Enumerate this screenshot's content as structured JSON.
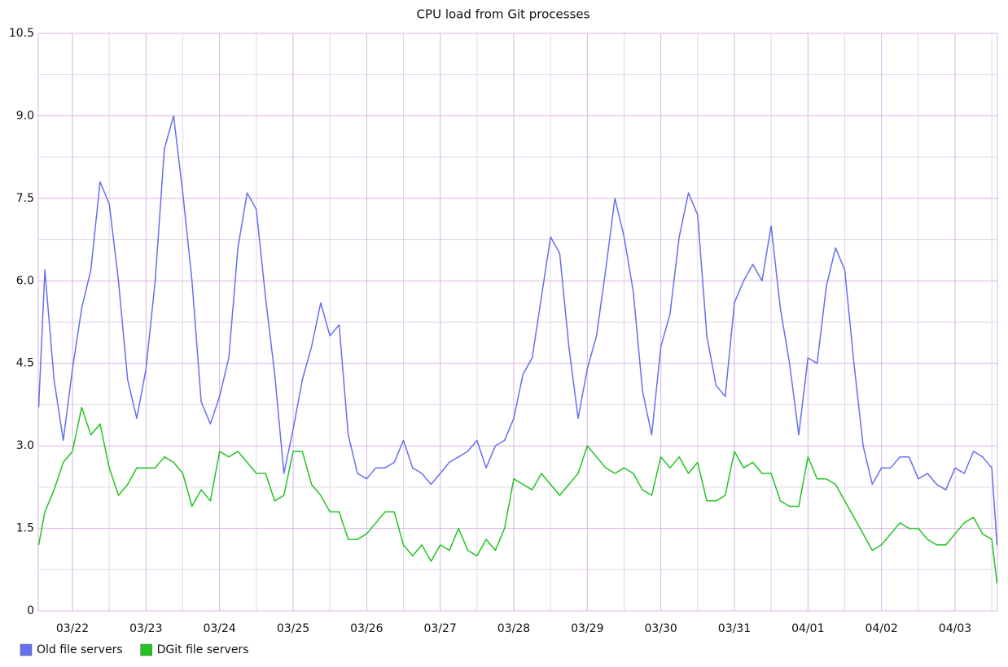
{
  "chart_data": {
    "type": "line",
    "title": "CPU load from Git processes",
    "x": [
      0.54,
      0.625,
      0.75,
      0.875,
      1,
      1.125,
      1.25,
      1.375,
      1.5,
      1.625,
      1.75,
      1.875,
      2,
      2.125,
      2.25,
      2.375,
      2.5,
      2.625,
      2.75,
      2.875,
      3,
      3.125,
      3.25,
      3.375,
      3.5,
      3.625,
      3.75,
      3.875,
      4,
      4.125,
      4.25,
      4.375,
      4.5,
      4.625,
      4.75,
      4.875,
      5,
      5.125,
      5.25,
      5.375,
      5.5,
      5.625,
      5.75,
      5.875,
      6,
      6.125,
      6.25,
      6.375,
      6.5,
      6.625,
      6.75,
      6.875,
      7,
      7.125,
      7.25,
      7.375,
      7.5,
      7.625,
      7.75,
      7.875,
      8,
      8.125,
      8.25,
      8.375,
      8.5,
      8.625,
      8.75,
      8.875,
      9,
      9.125,
      9.25,
      9.375,
      9.5,
      9.625,
      9.75,
      9.875,
      10,
      10.125,
      10.25,
      10.375,
      10.5,
      10.625,
      10.75,
      10.875,
      11,
      11.125,
      11.25,
      11.375,
      11.5,
      11.625,
      11.75,
      11.875,
      12,
      12.125,
      12.25,
      12.375,
      12.5,
      12.625,
      12.75,
      12.875,
      13,
      13.125,
      13.25,
      13.375,
      13.5,
      13.57
    ],
    "series": [
      {
        "name": "Old file servers",
        "color": "#6670ee",
        "values": [
          3.7,
          6.2,
          4.2,
          3.1,
          4.4,
          5.5,
          6.2,
          7.8,
          7.4,
          6.0,
          4.2,
          3.5,
          4.4,
          6.0,
          8.4,
          9.0,
          7.6,
          6.0,
          3.8,
          3.4,
          3.9,
          4.6,
          6.6,
          7.6,
          7.3,
          5.7,
          4.3,
          2.5,
          3.3,
          4.2,
          4.8,
          5.6,
          5.0,
          5.2,
          3.2,
          2.5,
          2.4,
          2.6,
          2.6,
          2.7,
          3.1,
          2.6,
          2.5,
          2.3,
          2.5,
          2.7,
          2.8,
          2.9,
          3.1,
          2.6,
          3.0,
          3.1,
          3.5,
          4.3,
          4.6,
          5.7,
          6.8,
          6.5,
          4.8,
          3.5,
          4.4,
          5.0,
          6.2,
          7.5,
          6.8,
          5.8,
          4.0,
          3.2,
          4.8,
          5.4,
          6.8,
          7.6,
          7.2,
          5.0,
          4.1,
          3.9,
          5.6,
          6.0,
          6.3,
          6.0,
          7.0,
          5.5,
          4.5,
          3.2,
          4.6,
          4.5,
          5.9,
          6.6,
          6.2,
          4.5,
          3.0,
          2.3,
          2.6,
          2.6,
          2.8,
          2.8,
          2.4,
          2.5,
          2.3,
          2.2,
          2.6,
          2.5,
          2.9,
          2.8,
          2.6,
          1.2
        ]
      },
      {
        "name": "DGit file servers",
        "color": "#22c422",
        "values": [
          1.2,
          1.8,
          2.2,
          2.7,
          2.9,
          3.7,
          3.2,
          3.4,
          2.6,
          2.1,
          2.3,
          2.6,
          2.6,
          2.6,
          2.8,
          2.7,
          2.5,
          1.9,
          2.2,
          2.0,
          2.9,
          2.8,
          2.9,
          2.7,
          2.5,
          2.5,
          2.0,
          2.1,
          2.9,
          2.9,
          2.3,
          2.1,
          1.8,
          1.8,
          1.3,
          1.3,
          1.4,
          1.6,
          1.8,
          1.8,
          1.2,
          1.0,
          1.2,
          0.9,
          1.2,
          1.1,
          1.5,
          1.1,
          1.0,
          1.3,
          1.1,
          1.5,
          2.4,
          2.3,
          2.2,
          2.5,
          2.3,
          2.1,
          2.3,
          2.5,
          3.0,
          2.8,
          2.6,
          2.5,
          2.6,
          2.5,
          2.2,
          2.1,
          2.8,
          2.6,
          2.8,
          2.5,
          2.7,
          2.0,
          2.0,
          2.1,
          2.9,
          2.6,
          2.7,
          2.5,
          2.5,
          2.0,
          1.9,
          1.9,
          2.8,
          2.4,
          2.4,
          2.3,
          2.0,
          1.7,
          1.4,
          1.1,
          1.2,
          1.4,
          1.6,
          1.5,
          1.5,
          1.3,
          1.2,
          1.2,
          1.4,
          1.6,
          1.7,
          1.4,
          1.3,
          0.5
        ]
      }
    ],
    "xlim": [
      0.535,
      13.576
    ],
    "xticks": [
      {
        "value": 1,
        "label": "03/22"
      },
      {
        "value": 2,
        "label": "03/23"
      },
      {
        "value": 3,
        "label": "03/24"
      },
      {
        "value": 4,
        "label": "03/25"
      },
      {
        "value": 5,
        "label": "03/26"
      },
      {
        "value": 6,
        "label": "03/27"
      },
      {
        "value": 7,
        "label": "03/28"
      },
      {
        "value": 8,
        "label": "03/29"
      },
      {
        "value": 9,
        "label": "03/30"
      },
      {
        "value": 10,
        "label": "03/31"
      },
      {
        "value": 11,
        "label": "04/01"
      },
      {
        "value": 12,
        "label": "04/02"
      },
      {
        "value": 13,
        "label": "04/03"
      }
    ],
    "ylim": [
      0,
      10.5
    ],
    "yticks": [
      {
        "value": 0,
        "label": "0"
      },
      {
        "value": 1.5,
        "label": "1.5"
      },
      {
        "value": 3,
        "label": "3.0"
      },
      {
        "value": 4.5,
        "label": "4.5"
      },
      {
        "value": 6,
        "label": "6.0"
      },
      {
        "value": 7.5,
        "label": "7.5"
      },
      {
        "value": 9,
        "label": "9.0"
      },
      {
        "value": 10.5,
        "label": "10.5"
      }
    ],
    "grid": true,
    "legend": "bottom-left"
  }
}
